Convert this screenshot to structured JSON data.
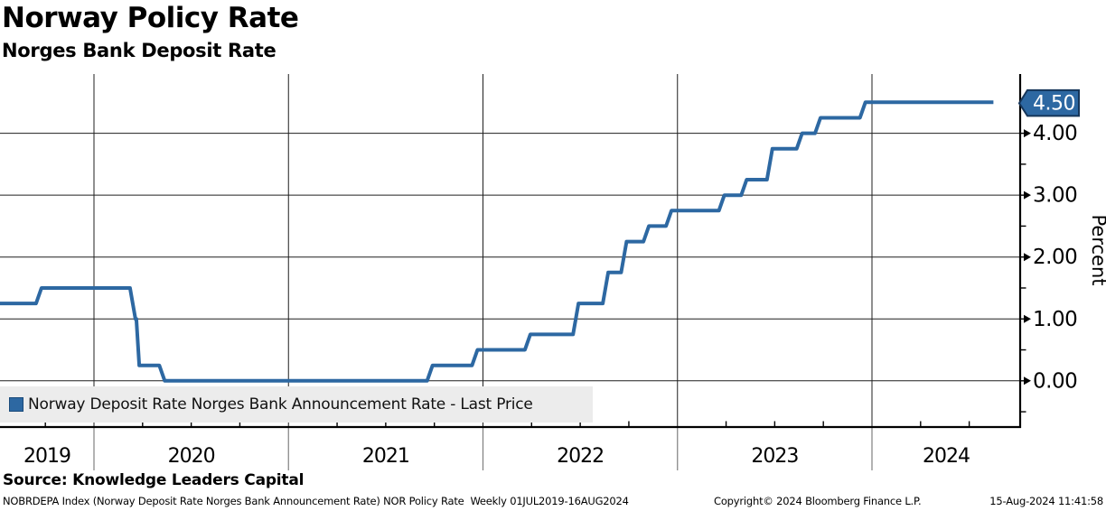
{
  "header": {
    "title": "Norway Policy Rate",
    "subtitle": "Norges Bank Deposit Rate"
  },
  "legend": {
    "label": "Norway Deposit Rate Norges Bank Announcement Rate - Last Price"
  },
  "source_line": "Source: Knowledge Leaders Capital",
  "footer": {
    "left": "NOBRDEPA Index (Norway Deposit Rate Norges Bank Announcement Rate) NOR Policy Rate  Weekly 01JUL2019-16AUG2024",
    "center": "Copyright© 2024 Bloomberg Finance L.P.",
    "right": "15-Aug-2024 11:41:58"
  },
  "colors": {
    "line": "#2d68a2",
    "tag_fill": "#2d68a2",
    "tag_border": "#16365a",
    "tag_text": "#ffffff",
    "grid": "#1f1f1f",
    "axis": "#000000",
    "year_separator": "#808080",
    "legend_bg": "#ececec"
  },
  "chart_data": {
    "type": "line",
    "subtype": "step",
    "title": "Norway Policy Rate",
    "subtitle": "Norges Bank Deposit Rate",
    "ylabel": "Percent",
    "series_name": "Norway Deposit Rate Norges Bank Announcement Rate - Last Price",
    "x_range": [
      "2019-07-01",
      "2024-08-16"
    ],
    "ylim": [
      -0.75,
      5.0
    ],
    "grid": true,
    "y_major_ticks": [
      {
        "value": 0,
        "label": "0.00"
      },
      {
        "value": 1,
        "label": "1.00"
      },
      {
        "value": 2,
        "label": "2.00"
      },
      {
        "value": 3,
        "label": "3.00"
      },
      {
        "value": 4,
        "label": "4.00"
      }
    ],
    "y_minor_tick_values": [
      -0.5,
      0.5,
      1.5,
      2.5,
      3.5,
      4.5
    ],
    "x_year_labels": [
      "2019",
      "2020",
      "2021",
      "2022",
      "2023",
      "2024"
    ],
    "last_price": {
      "label": "4.50",
      "value": 4.5
    },
    "points": [
      {
        "date": "2019-07-01",
        "rate": 1.25
      },
      {
        "date": "2019-09-19",
        "rate": 1.5
      },
      {
        "date": "2020-03-13",
        "rate": 1.0
      },
      {
        "date": "2020-03-20",
        "rate": 0.25
      },
      {
        "date": "2020-05-07",
        "rate": 0.0
      },
      {
        "date": "2021-09-23",
        "rate": 0.25
      },
      {
        "date": "2021-12-16",
        "rate": 0.5
      },
      {
        "date": "2022-03-24",
        "rate": 0.75
      },
      {
        "date": "2022-06-23",
        "rate": 1.25
      },
      {
        "date": "2022-08-18",
        "rate": 1.75
      },
      {
        "date": "2022-09-22",
        "rate": 2.25
      },
      {
        "date": "2022-11-03",
        "rate": 2.5
      },
      {
        "date": "2022-12-15",
        "rate": 2.75
      },
      {
        "date": "2023-03-23",
        "rate": 3.0
      },
      {
        "date": "2023-05-04",
        "rate": 3.25
      },
      {
        "date": "2023-06-22",
        "rate": 3.75
      },
      {
        "date": "2023-08-17",
        "rate": 4.0
      },
      {
        "date": "2023-09-21",
        "rate": 4.25
      },
      {
        "date": "2023-12-14",
        "rate": 4.5
      },
      {
        "date": "2024-08-16",
        "rate": 4.5
      }
    ]
  }
}
